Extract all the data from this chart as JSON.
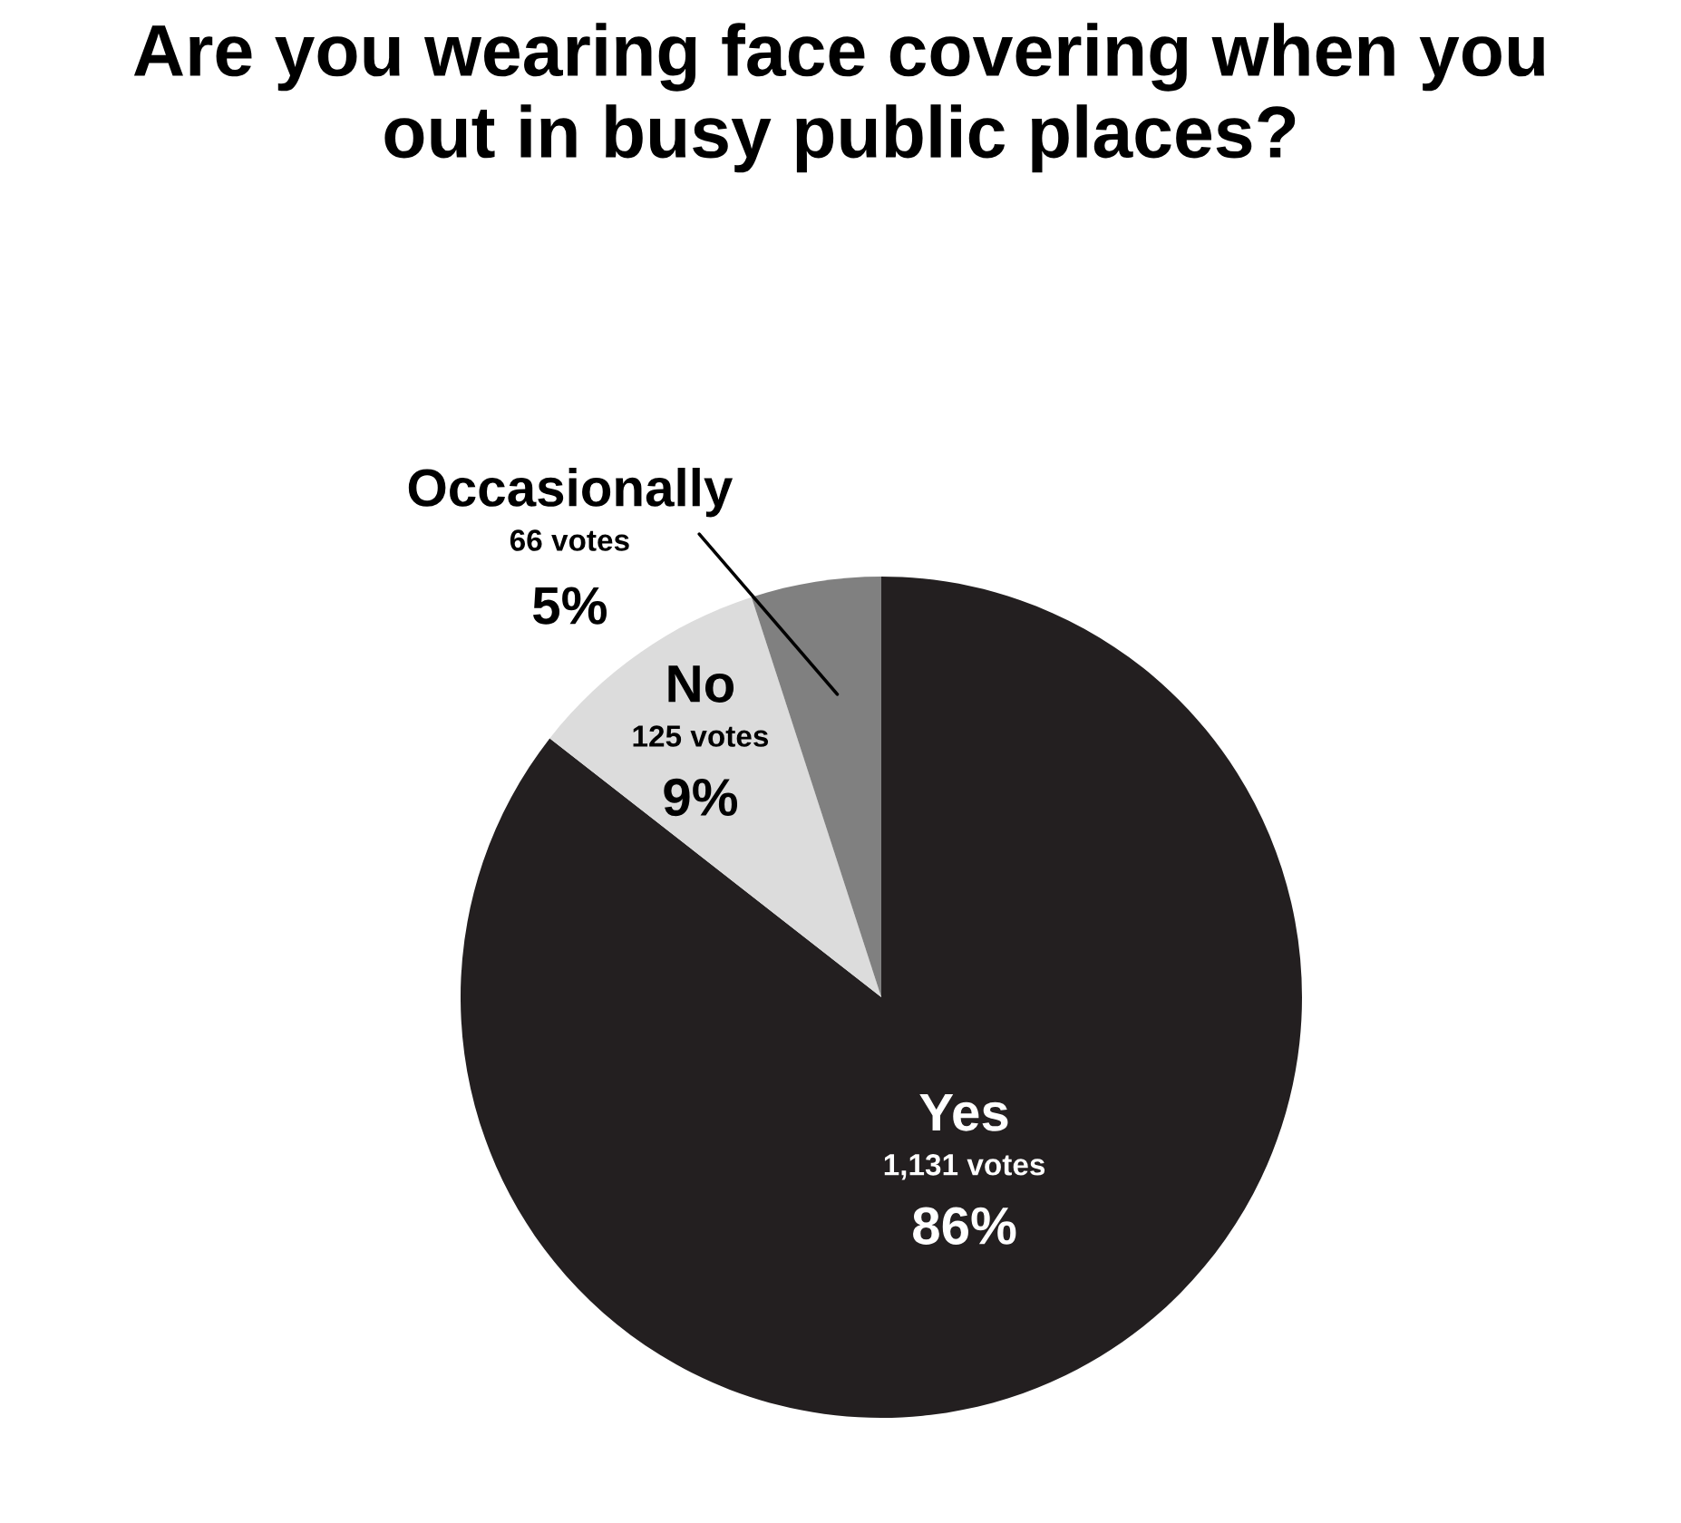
{
  "chart_data": {
    "type": "pie",
    "title": "Are you wearing face covering when you\nout in busy public places?",
    "categories": [
      "Yes",
      "No",
      "Occasionally"
    ],
    "values": [
      1131,
      125,
      66
    ],
    "colors": [
      "#231f20",
      "#dcdcdc",
      "#808080"
    ],
    "value_labels": [
      "1,131 votes",
      "125 votes",
      "66 votes"
    ],
    "annotations": [
      {
        "text": "86%",
        "x": "Yes"
      },
      {
        "text": "9%",
        "x": "No"
      },
      {
        "text": "5%",
        "x": "Occasionally"
      }
    ]
  }
}
